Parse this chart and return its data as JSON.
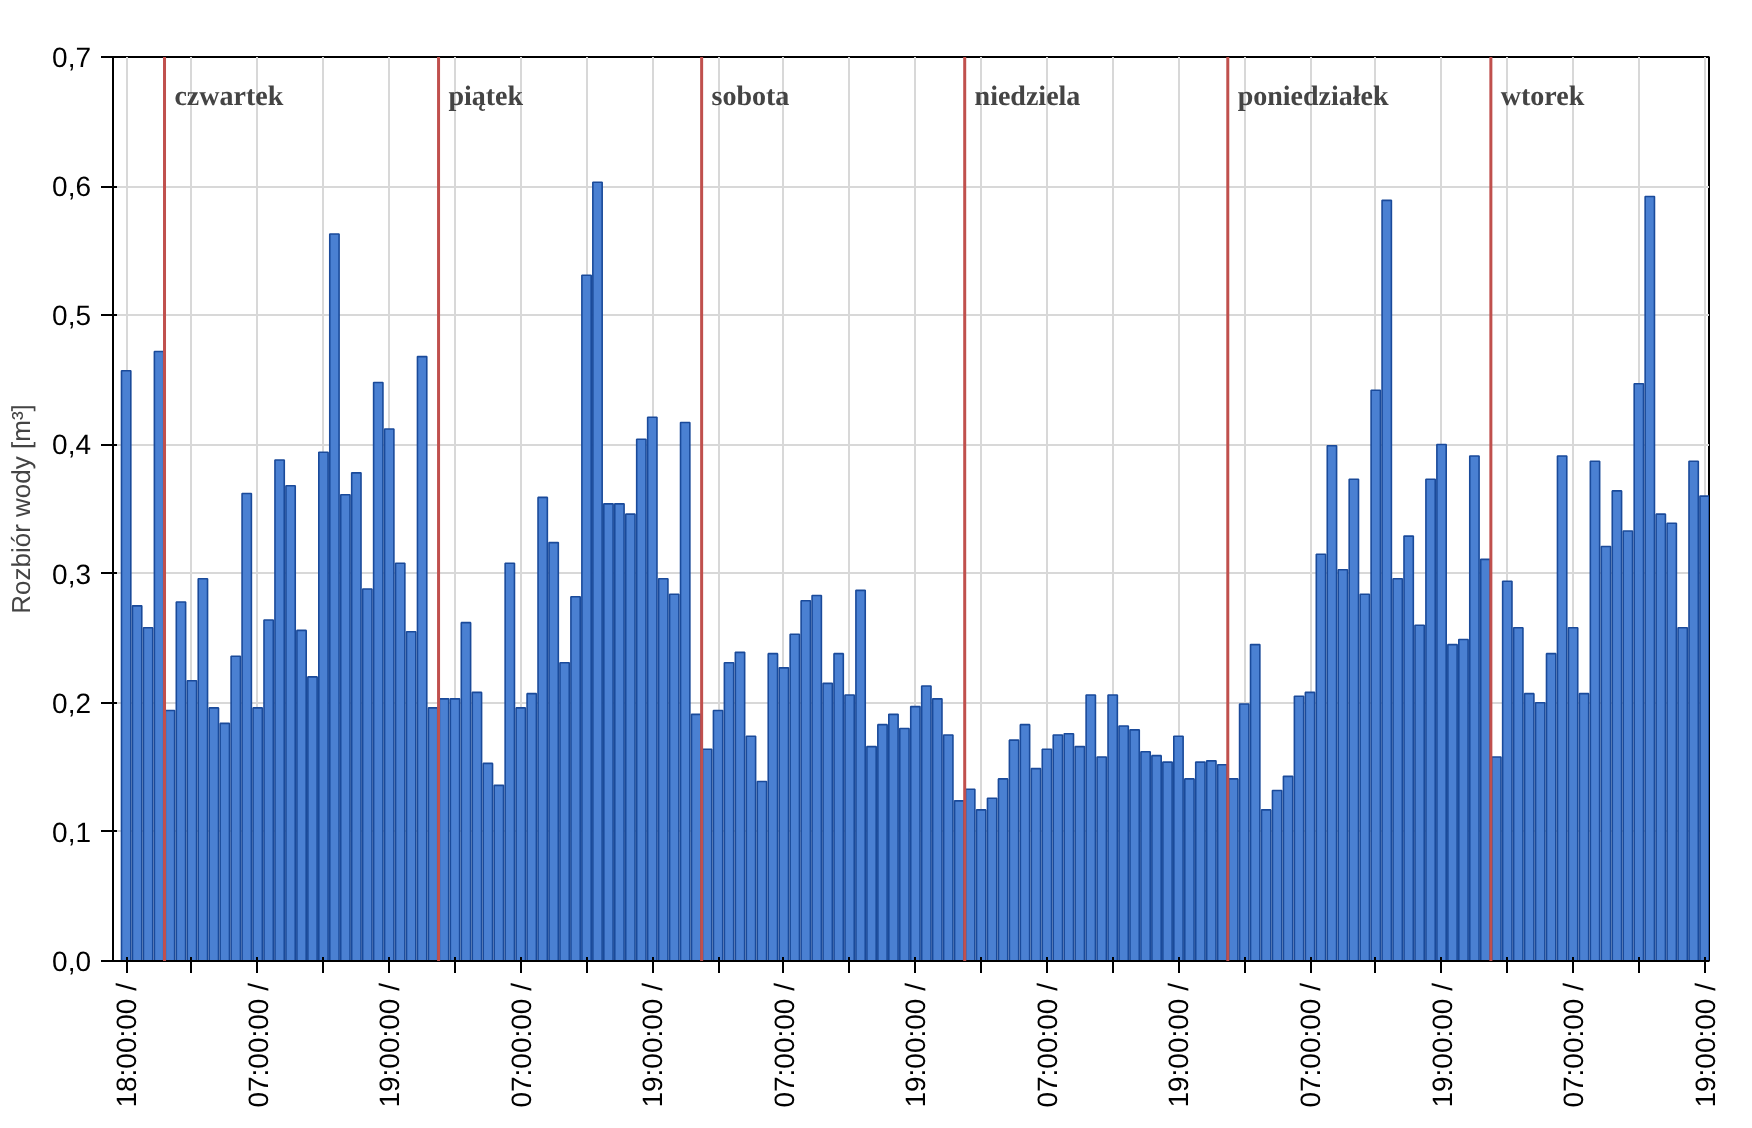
{
  "chart_data": {
    "type": "bar",
    "ylabel": "Rozbiór wody [m³]",
    "categories": [
      "18:00:00 /",
      null,
      null,
      null,
      null,
      null,
      null,
      null,
      null,
      null,
      null,
      null,
      "07:00:00 /",
      null,
      null,
      null,
      null,
      null,
      null,
      null,
      null,
      null,
      null,
      null,
      "19:00:00 /",
      null,
      null,
      null,
      null,
      null,
      null,
      null,
      null,
      null,
      null,
      null,
      "07:00:00 /",
      null,
      null,
      null,
      null,
      null,
      null,
      null,
      null,
      null,
      null,
      null,
      "19:00:00 /",
      null,
      null,
      null,
      null,
      null,
      null,
      null,
      null,
      null,
      null,
      null,
      "07:00:00 /",
      null,
      null,
      null,
      null,
      null,
      null,
      null,
      null,
      null,
      null,
      null,
      "19:00:00 /",
      null,
      null,
      null,
      null,
      null,
      null,
      null,
      null,
      null,
      null,
      null,
      "07:00:00 /",
      null,
      null,
      null,
      null,
      null,
      null,
      null,
      null,
      null,
      null,
      null,
      "19:00:00 /",
      null,
      null,
      null,
      null,
      null,
      null,
      null,
      null,
      null,
      null,
      null,
      "07:00:00 /",
      null,
      null,
      null,
      null,
      null,
      null,
      null,
      null,
      null,
      null,
      null,
      "19:00:00 /",
      null,
      null,
      null,
      null,
      null,
      null,
      null,
      null,
      null,
      null,
      null,
      "07:00:00 /",
      null,
      null,
      null,
      null,
      null,
      null,
      null,
      null,
      null,
      null,
      null,
      "19:00:00 /"
    ],
    "annotations": [
      "czwartek",
      "piątek",
      "sobota",
      "niedziela",
      "poniedziałek",
      "wtorek"
    ],
    "values": [
      0.457,
      0.275,
      0.258,
      0.472,
      0.194,
      0.278,
      0.217,
      0.296,
      0.196,
      0.184,
      0.236,
      0.362,
      0.196,
      0.264,
      0.388,
      0.368,
      0.256,
      0.22,
      0.394,
      0.563,
      0.361,
      0.378,
      0.288,
      0.448,
      0.412,
      0.308,
      0.255,
      0.468,
      0.196,
      0.203,
      0.203,
      0.262,
      0.208,
      0.153,
      0.136,
      0.308,
      0.196,
      0.207,
      0.359,
      0.324,
      0.231,
      0.282,
      0.531,
      0.603,
      0.354,
      0.354,
      0.346,
      0.404,
      0.421,
      0.296,
      0.284,
      0.417,
      0.191,
      0.164,
      0.194,
      0.231,
      0.239,
      0.174,
      0.139,
      0.238,
      0.227,
      0.253,
      0.279,
      0.283,
      0.215,
      0.238,
      0.206,
      0.287,
      0.166,
      0.183,
      0.191,
      0.18,
      0.197,
      0.213,
      0.203,
      0.175,
      0.124,
      0.133,
      0.117,
      0.126,
      0.141,
      0.171,
      0.183,
      0.149,
      0.164,
      0.175,
      0.176,
      0.166,
      0.206,
      0.158,
      0.206,
      0.182,
      0.179,
      0.162,
      0.159,
      0.154,
      0.174,
      0.141,
      0.154,
      0.155,
      0.152,
      0.141,
      0.199,
      0.245,
      0.117,
      0.132,
      0.143,
      0.205,
      0.208,
      0.315,
      0.399,
      0.303,
      0.373,
      0.284,
      0.442,
      0.589,
      0.296,
      0.329,
      0.26,
      0.373,
      0.4,
      0.245,
      0.249,
      0.391,
      0.311,
      0.158,
      0.294,
      0.258,
      0.207,
      0.2,
      0.238,
      0.391,
      0.258,
      0.207,
      0.387,
      0.321,
      0.364,
      0.333,
      0.447,
      0.592,
      0.346,
      0.339,
      0.258,
      0.387,
      0.36
    ],
    "color": "#4a80d2",
    "ylim": [
      0,
      0.7
    ],
    "yticks": [
      {
        "value": 0,
        "label": "0,0"
      },
      {
        "value": 0.1,
        "label": "0,1"
      },
      {
        "value": 0.2,
        "label": "0,2"
      },
      {
        "value": 0.3,
        "label": "0,3"
      },
      {
        "value": 0.4,
        "label": "0,4"
      },
      {
        "value": 0.5,
        "label": "0,5"
      },
      {
        "value": 0.6,
        "label": "0,6"
      },
      {
        "value": 0.7,
        "label": "0,7"
      }
    ],
    "grid": true
  }
}
